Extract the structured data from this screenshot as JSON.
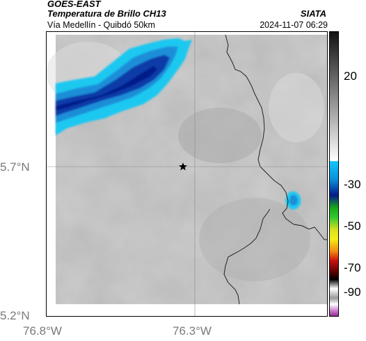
{
  "header": {
    "satellite": "GOES-EAST",
    "product": "Temperatura de Brillo CH13",
    "region": "Vía Medellín - Quibdó 50km",
    "source": "SIATA",
    "datetime": "2024-11-07 06:29"
  },
  "map": {
    "lat_labels": [
      "5.7°N",
      "5.2°N"
    ],
    "lon_labels": [
      "76.8°W",
      "76.3°W"
    ],
    "marker_icon": "star-icon"
  },
  "colorbar": {
    "ticks": [
      "20",
      "-30",
      "-50",
      "-70",
      "-90"
    ],
    "colors": {
      "gray_top": "#111111",
      "gray_bottom": "#ffffff",
      "cyan": "#12c8ff",
      "navy": "#061a8a",
      "green": "#2ec82e",
      "yellow": "#f2ef1a",
      "orange": "#f08a10",
      "red": "#c81010",
      "magenta": "#b040b0"
    }
  }
}
